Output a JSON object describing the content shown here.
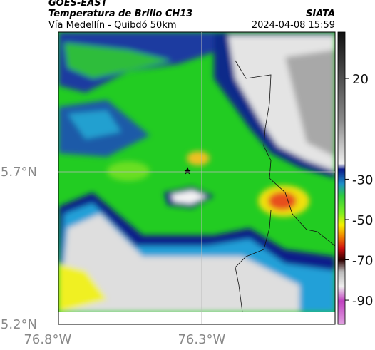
{
  "header": {
    "title": "GOES-EAST",
    "subtitle": "Temperatura de Brillo CH13",
    "source": "SIATA",
    "location": "Vía Medellín - Quibdó 50km",
    "timestamp": "2024-04-08 15:59"
  },
  "map": {
    "xlim": [
      -76.765,
      -75.867
    ],
    "ylim": [
      5.2,
      6.158
    ],
    "xticks": [
      {
        "value": -76.8,
        "label": "76.8°W"
      },
      {
        "value": -76.3,
        "label": "76.3°W"
      }
    ],
    "yticks": [
      {
        "value": 5.2,
        "label": "5.2°N"
      },
      {
        "value": 5.7,
        "label": "5.7°N"
      }
    ],
    "colorbar": {
      "lim": [
        -102,
        43
      ],
      "ticks": [
        20,
        -30,
        -50,
        -70,
        -90
      ]
    }
  }
}
